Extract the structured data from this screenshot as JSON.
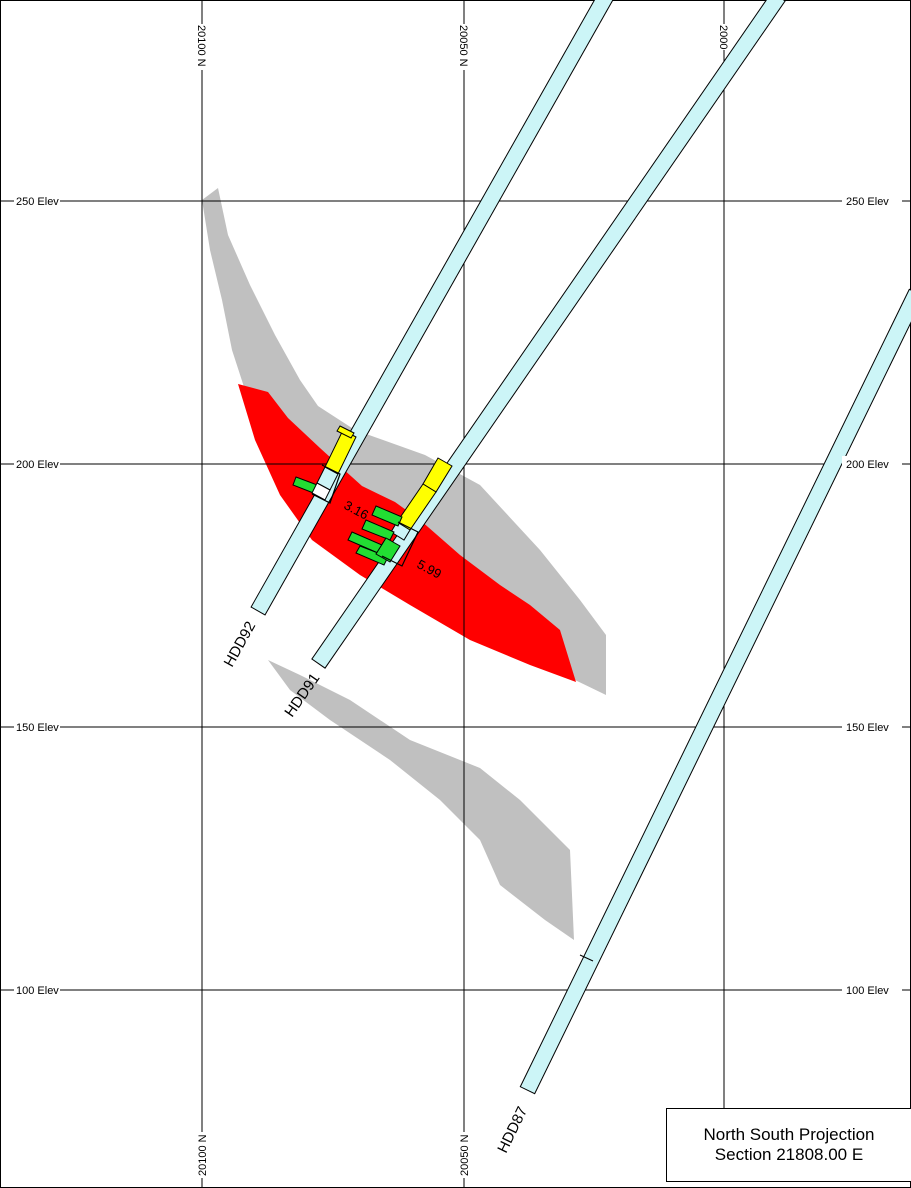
{
  "map": {
    "elevation_labels": [
      "250 Elev",
      "200 Elev",
      "150 Elev",
      "100 Elev"
    ],
    "northing_labels_top": [
      "20100 N",
      "20050 N",
      "2000"
    ],
    "northing_labels_bottom": [
      "20100 N",
      "20050 N"
    ],
    "drill_holes": [
      "HDD92",
      "HDD91",
      "HDD87"
    ],
    "intercepts": [
      "3.16",
      "5.99"
    ],
    "colors": {
      "ore_zone": "#ff0000",
      "envelope": "#c0c0c0",
      "drill_trace": "#ccf5f7",
      "assay_high": "#ffff00",
      "assay_low": "#22dd33"
    }
  },
  "title_box": {
    "line1": "North South Projection",
    "line2": "Section 21808.00 E"
  }
}
